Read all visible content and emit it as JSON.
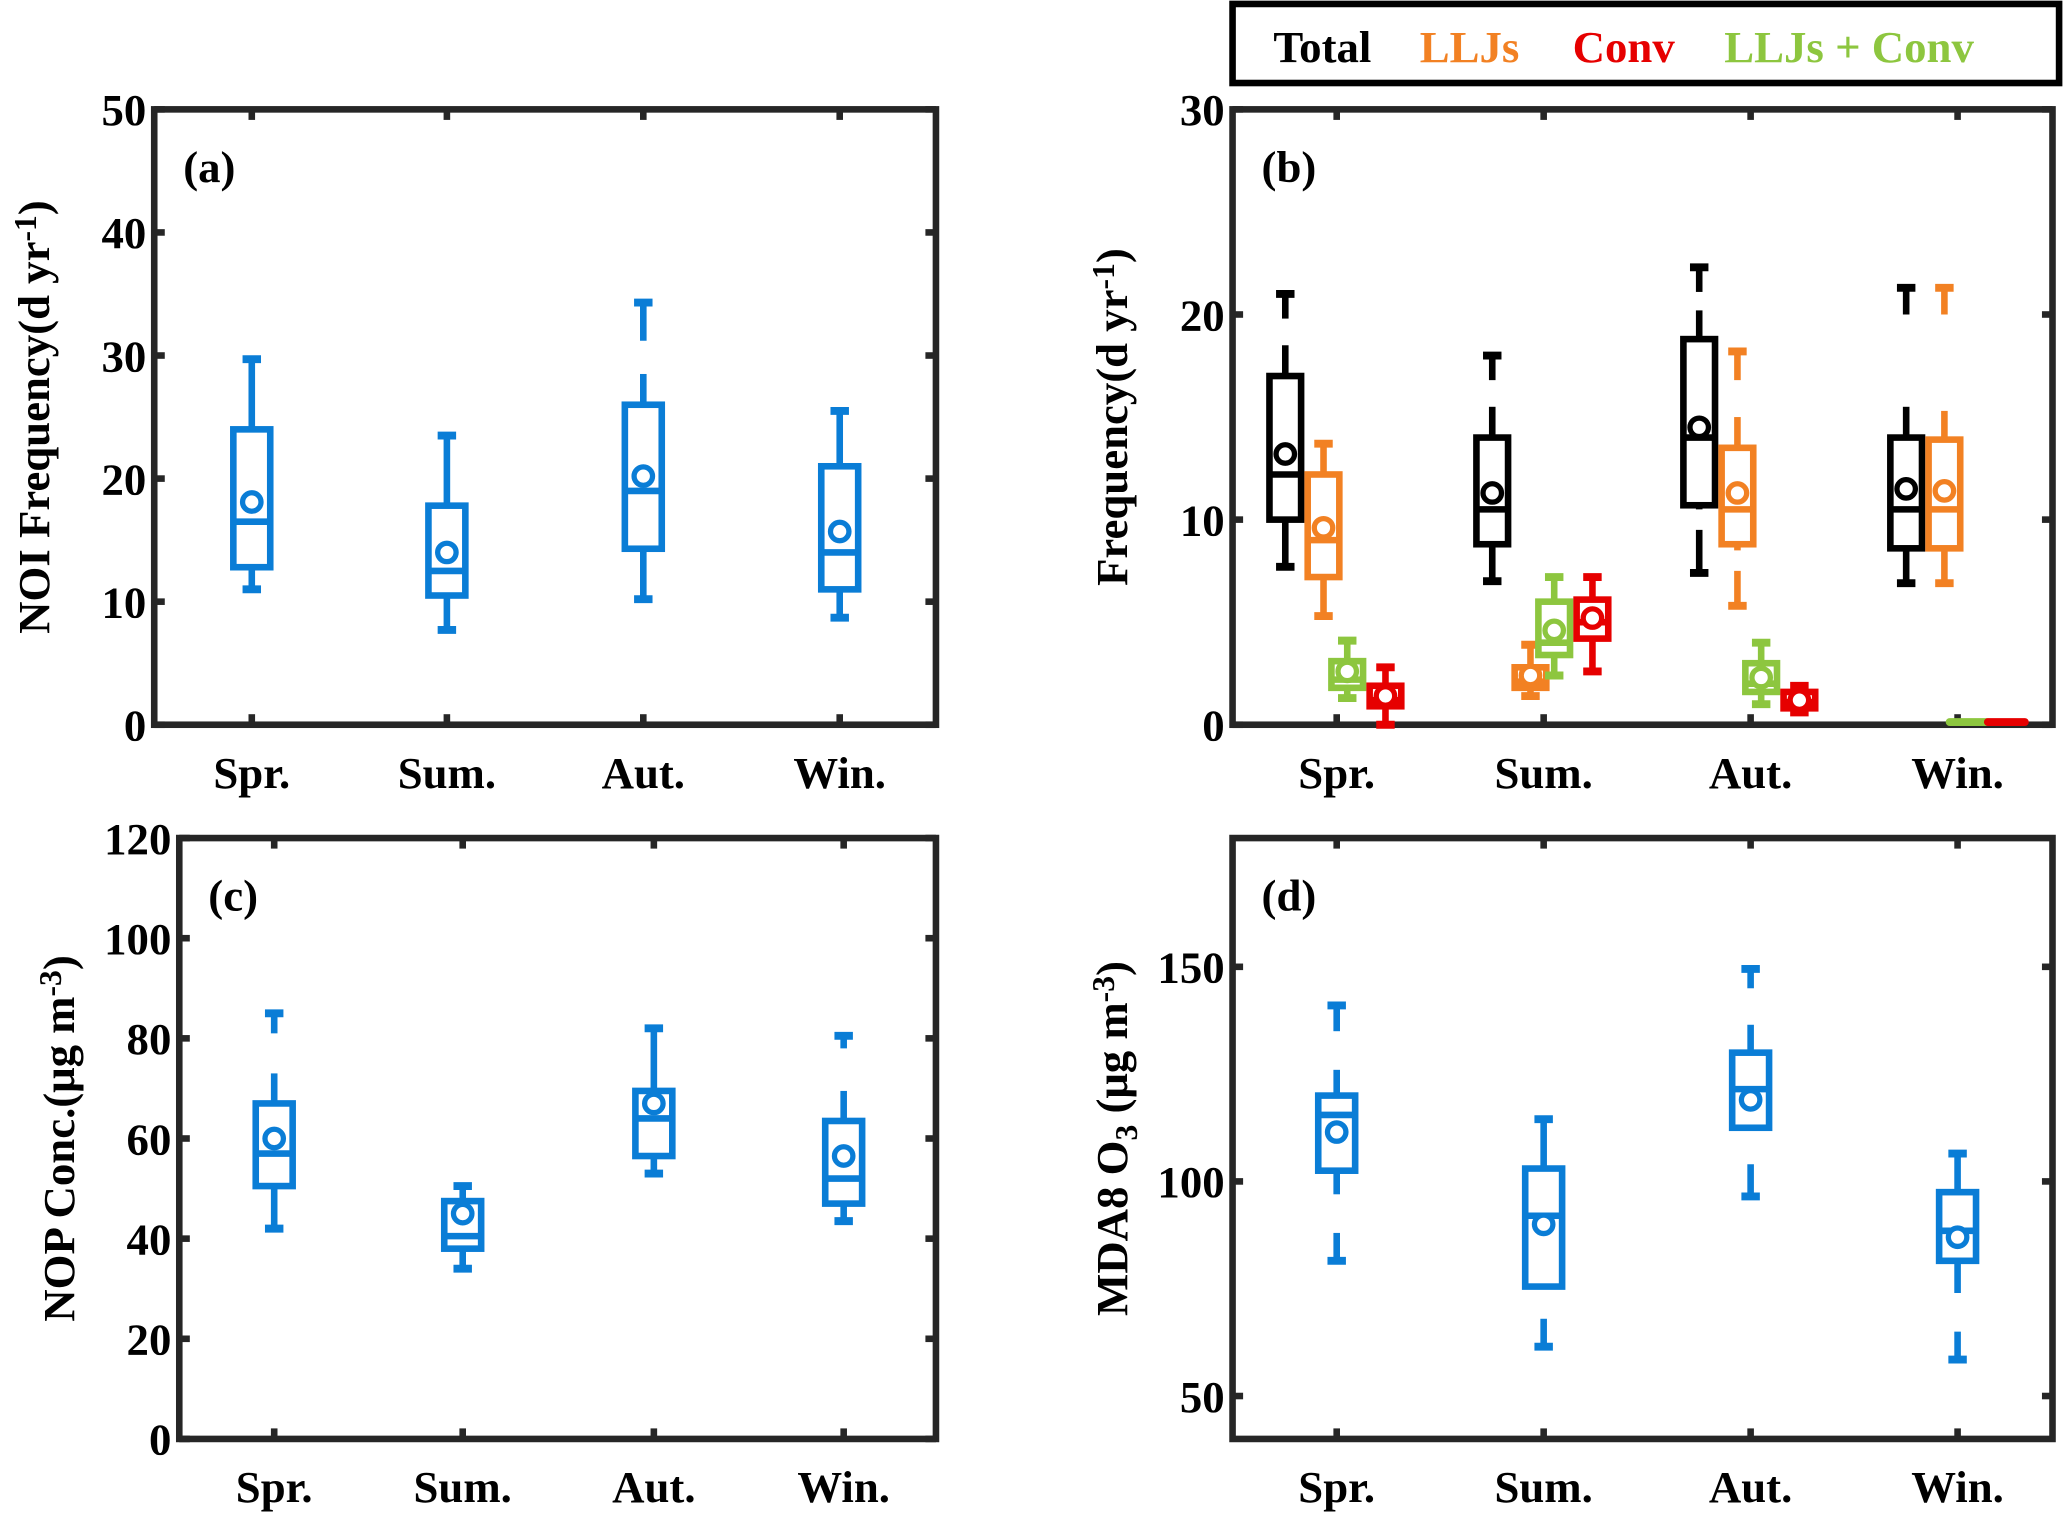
{
  "legend": {
    "items": [
      {
        "label": "Total",
        "color": "#000000"
      },
      {
        "label": "LLJs",
        "color": "#F28123"
      },
      {
        "label": "Conv",
        "color": "#E60000"
      },
      {
        "label": "LLJs + Conv",
        "color": "#8DC63F"
      }
    ]
  },
  "chart_data": [
    {
      "id": "a",
      "type": "box",
      "panel_label": "(a)",
      "ylabel": "NOI Frequency(d yr",
      "ylabel_sup": "-1",
      "ylabel_tail": ")",
      "ylim": [
        0,
        50
      ],
      "yticks": [
        0,
        10,
        20,
        30,
        40,
        50
      ],
      "categories": [
        "Spr.",
        "Sum.",
        "Aut.",
        "Win."
      ],
      "series": [
        {
          "name": "NOI",
          "color": "#0A7DD6",
          "boxes": [
            {
              "lower_marker": 11,
              "lower": 12.5,
              "q1": 12.8,
              "median": 16.5,
              "mean": 18.1,
              "q3": 24,
              "upper": 26.5,
              "upper_marker": 29.7
            },
            {
              "lower_marker": 7.7,
              "lower": 10.3,
              "q1": 10.5,
              "median": 12.5,
              "mean": 14,
              "q3": 17.8,
              "upper": 20.2,
              "upper_marker": 23.5
            },
            {
              "lower_marker": 10.2,
              "lower": 12.5,
              "q1": 14.3,
              "median": 19,
              "mean": 20.2,
              "q3": 26,
              "upper": 28.5,
              "upper_marker": 34.3,
              "upper_gap": 31.2
            },
            {
              "lower_marker": 8.7,
              "lower": 10.8,
              "q1": 11,
              "median": 14,
              "mean": 15.7,
              "q3": 21,
              "upper": 23.5,
              "upper_marker": 25.5
            }
          ]
        }
      ]
    },
    {
      "id": "b",
      "type": "box",
      "panel_label": "(b)",
      "ylabel": "Frequency(d yr",
      "ylabel_sup": "-1",
      "ylabel_tail": ")",
      "ylim": [
        0,
        30
      ],
      "yticks": [
        0,
        10,
        20,
        30
      ],
      "categories": [
        "Spr.",
        "Sum.",
        "Aut.",
        "Win."
      ],
      "series": [
        {
          "name": "Total",
          "color": "#000000",
          "boxes": [
            {
              "lower_marker": 7.7,
              "lower": 9,
              "q1": 10,
              "median": 12.2,
              "mean": 13.2,
              "q3": 17,
              "upper": 18.5,
              "upper_marker": 21,
              "upper_gap": 19.8
            },
            {
              "lower_marker": 7,
              "lower": 8.7,
              "q1": 8.8,
              "median": 10.5,
              "mean": 11.3,
              "q3": 14,
              "upper": 15.5,
              "upper_marker": 18,
              "upper_gap": 16.8
            },
            {
              "lower_marker": 7.4,
              "lower": 10.5,
              "q1": 10.7,
              "median": 14,
              "mean": 14.5,
              "q3": 18.8,
              "upper": 20.2,
              "upper_marker": 22.3,
              "upper_gap": 21.1,
              "lower_gap": 9.5
            },
            {
              "lower_marker": 6.9,
              "lower": 8.5,
              "q1": 8.6,
              "median": 10.5,
              "mean": 11.5,
              "q3": 14,
              "upper": 15.5,
              "upper_marker": 21.3,
              "upper_gap": 20
            }
          ]
        },
        {
          "name": "LLJs",
          "color": "#F28123",
          "boxes": [
            {
              "lower_marker": 5.3,
              "lower": 7,
              "q1": 7.2,
              "median": 9,
              "mean": 9.6,
              "q3": 12.2,
              "upper": 13.7,
              "upper_marker": 13.7
            },
            {
              "lower_marker": 1.4,
              "lower": 1.6,
              "q1": 1.8,
              "median": 2.1,
              "mean": 2.4,
              "q3": 2.8,
              "upper": 3.9,
              "upper_marker": 3.9
            },
            {
              "lower_marker": 5.8,
              "lower": 8.5,
              "q1": 8.8,
              "median": 10.5,
              "mean": 11.3,
              "q3": 13.5,
              "upper": 15,
              "upper_marker": 18.2,
              "upper_gap": 16.8,
              "lower_gap": 7.5
            },
            {
              "lower_marker": 6.9,
              "lower": 8.5,
              "q1": 8.6,
              "median": 10.5,
              "mean": 11.4,
              "q3": 13.9,
              "upper": 15.3,
              "upper_marker": 21.3,
              "upper_gap": 20
            }
          ]
        },
        {
          "name": "LLJs + Conv",
          "color": "#8DC63F",
          "boxes": [
            {
              "lower_marker": 1.3,
              "lower": 1.5,
              "q1": 1.8,
              "median": 2.2,
              "mean": 2.6,
              "q3": 3.1,
              "upper": 4.1,
              "upper_marker": 4.1
            },
            {
              "lower_marker": 2.4,
              "lower": 3,
              "q1": 3.4,
              "median": 4,
              "mean": 4.6,
              "q3": 6,
              "upper": 7.2,
              "upper_marker": 7.2
            },
            {
              "lower_marker": 1,
              "lower": 1.3,
              "q1": 1.6,
              "median": 2,
              "mean": 2.3,
              "q3": 3,
              "upper": 4,
              "upper_marker": 4
            },
            {
              "lower_marker": 0,
              "lower": 0,
              "q1": 0,
              "median": 0,
              "mean": 0,
              "q3": 0.1,
              "upper": 0.1,
              "upper_marker": 0.1
            }
          ]
        },
        {
          "name": "Conv",
          "color": "#E60000",
          "boxes": [
            {
              "lower_marker": 0,
              "lower": 0.2,
              "q1": 0.9,
              "median": 1.2,
              "mean": 1.4,
              "q3": 1.9,
              "upper": 2.8,
              "upper_marker": 2.8
            },
            {
              "lower_marker": 2.6,
              "lower": 3.5,
              "q1": 4.2,
              "median": 5,
              "mean": 5.2,
              "q3": 6.1,
              "upper": 7.2,
              "upper_marker": 7.2
            },
            {
              "lower_marker": 0.6,
              "lower": 0.7,
              "q1": 0.8,
              "median": 1.1,
              "mean": 1.2,
              "q3": 1.6,
              "upper": 1.9,
              "upper_marker": 1.9
            },
            {
              "lower_marker": 0,
              "lower": 0,
              "q1": 0,
              "median": 0,
              "mean": 0,
              "q3": 0.05,
              "upper": 0.05,
              "upper_marker": 0.05
            }
          ]
        }
      ]
    },
    {
      "id": "c",
      "type": "box",
      "panel_label": "(c)",
      "ylabel": "NOP Conc.(μg m",
      "ylabel_sup": "-3",
      "ylabel_tail": ")",
      "ylim": [
        0,
        120
      ],
      "yticks": [
        0,
        20,
        40,
        60,
        80,
        100,
        120
      ],
      "categories": [
        "Spr.",
        "Sum.",
        "Aut.",
        "Win."
      ],
      "series": [
        {
          "name": "NOP",
          "color": "#0A7DD6",
          "boxes": [
            {
              "lower_marker": 42,
              "lower": 47,
              "q1": 50.5,
              "median": 57,
              "mean": 60,
              "q3": 67,
              "upper": 73,
              "upper_marker": 85,
              "upper_gap": 81
            },
            {
              "lower_marker": 34,
              "lower": 37,
              "q1": 38,
              "median": 40.5,
              "mean": 45,
              "q3": 47.5,
              "upper": 50.5,
              "upper_marker": 50.5
            },
            {
              "lower_marker": 53,
              "lower": 55.5,
              "q1": 56.5,
              "median": 64,
              "mean": 67,
              "q3": 69.5,
              "upper": 75.5,
              "upper_marker": 82
            },
            {
              "lower_marker": 43.5,
              "lower": 46,
              "q1": 47,
              "median": 52,
              "mean": 56.5,
              "q3": 63.5,
              "upper": 69.5,
              "upper_marker": 80.5,
              "upper_gap": 78
            }
          ]
        }
      ]
    },
    {
      "id": "d",
      "type": "box",
      "panel_label": "(d)",
      "ylabel": "MDA8 O",
      "ylabel_sub": "3",
      "ylabel_tail": " (μg m",
      "ylabel_sup": "-3",
      "ylabel_end": ")",
      "ylim": [
        40,
        180
      ],
      "yticks": [
        50,
        100,
        150
      ],
      "categories": [
        "Spr.",
        "Sum.",
        "Aut.",
        "Win."
      ],
      "series": [
        {
          "name": "MDA8 O3",
          "color": "#0A7DD6",
          "boxes": [
            {
              "lower_marker": 81.5,
              "lower": 97,
              "q1": 102.5,
              "median": 115.5,
              "mean": 111.5,
              "q3": 120,
              "upper": 126,
              "upper_marker": 141,
              "upper_gap": 135,
              "lower_gap": 88
            },
            {
              "lower_marker": 61.5,
              "lower": 75,
              "q1": 75.5,
              "median": 92,
              "mean": 90,
              "q3": 103,
              "upper": 110,
              "upper_marker": 114.5,
              "lower_gap": 68
            },
            {
              "lower_marker": 96.5,
              "lower": 112,
              "q1": 112.5,
              "median": 121.5,
              "mean": 119,
              "q3": 130,
              "upper": 136.5,
              "upper_marker": 149.5,
              "upper_gap": 145,
              "lower_gap": 104
            },
            {
              "lower_marker": 58.5,
              "lower": 74,
              "q1": 81.5,
              "median": 88.5,
              "mean": 87,
              "q3": 97.5,
              "upper": 104,
              "upper_marker": 106.5,
              "lower_gap": 65
            }
          ]
        }
      ]
    }
  ]
}
